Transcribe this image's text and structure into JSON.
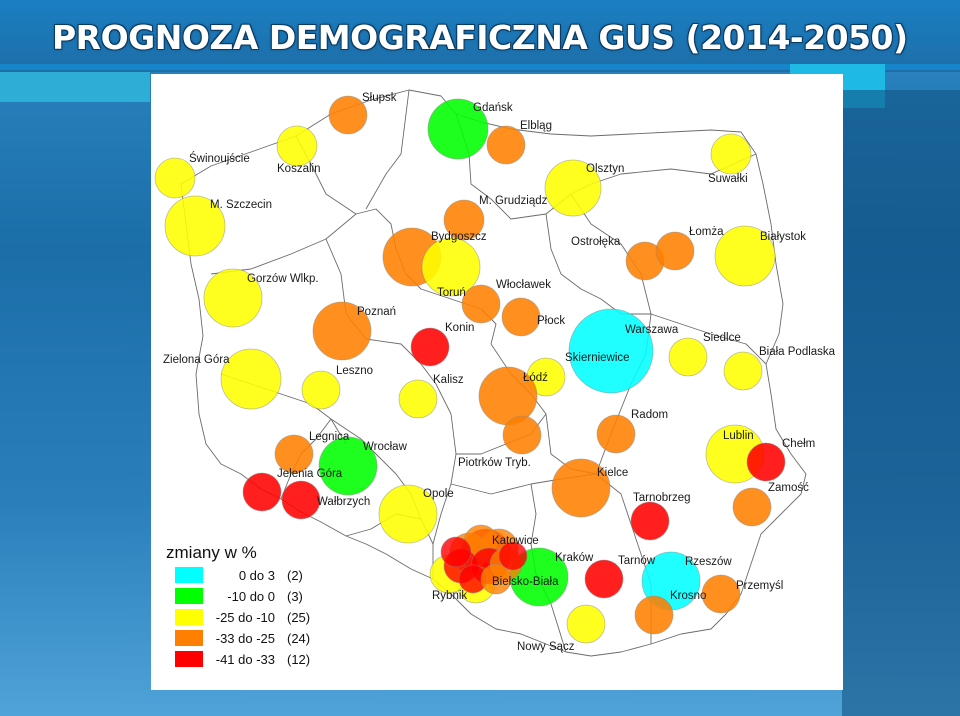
{
  "title": "PROGNOZA DEMOGRAFICZNA GUS (2014-2050)",
  "colors": {
    "cat1": "#00ffff",
    "cat2": "#00ff00",
    "cat3": "#ffff00",
    "cat4": "#ff8000",
    "cat5": "#ff0000"
  },
  "legend": {
    "title": "zmiany w %",
    "items": [
      {
        "range": "0 do 3",
        "count": "(2)",
        "category": "cat1"
      },
      {
        "range": "-10 do 0",
        "count": "(3)",
        "category": "cat2"
      },
      {
        "range": "-25 do -10",
        "count": "(25)",
        "category": "cat3"
      },
      {
        "range": "-33 do -25",
        "count": "(24)",
        "category": "cat4"
      },
      {
        "range": "-41 do -33",
        "count": "(12)",
        "category": "cat5"
      }
    ]
  },
  "cities": [
    {
      "name": "Słupsk",
      "category": "cat4"
    },
    {
      "name": "Gdańsk",
      "category": "cat2"
    },
    {
      "name": "Elbląg",
      "category": "cat4"
    },
    {
      "name": "Świnoujście",
      "category": "cat3"
    },
    {
      "name": "Koszalin",
      "category": "cat3"
    },
    {
      "name": "Olsztyn",
      "category": "cat3"
    },
    {
      "name": "Suwałki",
      "category": "cat3"
    },
    {
      "name": "M. Szczecin",
      "category": "cat3"
    },
    {
      "name": "M. Grudziądz",
      "category": "cat4"
    },
    {
      "name": "Bydgoszcz",
      "category": "cat4"
    },
    {
      "name": "Ostrołęka",
      "category": "cat4"
    },
    {
      "name": "Łomża",
      "category": "cat4"
    },
    {
      "name": "Białystok",
      "category": "cat3"
    },
    {
      "name": "Gorzów Wlkp.",
      "category": "cat3"
    },
    {
      "name": "Toruń",
      "category": "cat3"
    },
    {
      "name": "Włocławek",
      "category": "cat4"
    },
    {
      "name": "Poznań",
      "category": "cat4"
    },
    {
      "name": "Płock",
      "category": "cat4"
    },
    {
      "name": "Konin",
      "category": "cat5"
    },
    {
      "name": "Warszawa",
      "category": "cat1"
    },
    {
      "name": "Siedlce",
      "category": "cat3"
    },
    {
      "name": "Zielona Góra",
      "category": "cat3"
    },
    {
      "name": "Skierniewice",
      "category": "cat3"
    },
    {
      "name": "Biała Podlaska",
      "category": "cat3"
    },
    {
      "name": "Leszno",
      "category": "cat3"
    },
    {
      "name": "Kalisz",
      "category": "cat3"
    },
    {
      "name": "Łódź",
      "category": "cat4"
    },
    {
      "name": "Radom",
      "category": "cat4"
    },
    {
      "name": "Legnica",
      "category": "cat4"
    },
    {
      "name": "Wrocław",
      "category": "cat2"
    },
    {
      "name": "Lublin",
      "category": "cat3"
    },
    {
      "name": "Chełm",
      "category": "cat5"
    },
    {
      "name": "Jelenia Góra",
      "category": "cat5"
    },
    {
      "name": "Piotrków Tryb.",
      "category": "cat4"
    },
    {
      "name": "Kielce",
      "category": "cat4"
    },
    {
      "name": "Zamość",
      "category": "cat4"
    },
    {
      "name": "Wałbrzych",
      "category": "cat5"
    },
    {
      "name": "Opole",
      "category": "cat3"
    },
    {
      "name": "Tarnobrzeg",
      "category": "cat5"
    },
    {
      "name": "Katowice",
      "category": "cat5"
    },
    {
      "name": "Kraków",
      "category": "cat2"
    },
    {
      "name": "Tarnów",
      "category": "cat5"
    },
    {
      "name": "Rzeszów",
      "category": "cat1"
    },
    {
      "name": "Bielsko-Biała",
      "category": "cat3"
    },
    {
      "name": "Rybnik",
      "category": "cat3"
    },
    {
      "name": "Krosno",
      "category": "cat4"
    },
    {
      "name": "Przemyśl",
      "category": "cat4"
    },
    {
      "name": "Nowy Sącz",
      "category": "cat3"
    }
  ]
}
